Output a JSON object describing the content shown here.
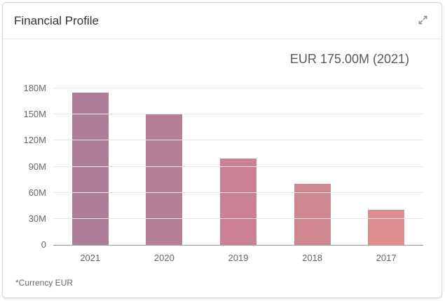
{
  "card": {
    "title": "Financial Profile"
  },
  "chart_data": {
    "type": "bar",
    "title": "EUR 175.00M (2021)",
    "categories": [
      "2021",
      "2020",
      "2019",
      "2018",
      "2017"
    ],
    "values": [
      175,
      150,
      99,
      70,
      40
    ],
    "unit": "M EUR",
    "ylim": [
      0,
      180
    ],
    "yticks": [
      0,
      30,
      60,
      90,
      120,
      150,
      180
    ],
    "ytick_labels": [
      "0",
      "30M",
      "60M",
      "90M",
      "120M",
      "150M",
      "180M"
    ],
    "bar_colors": [
      "#ae7e99",
      "#b57f97",
      "#ca8095",
      "#ce8691",
      "#e08d90"
    ],
    "grid": true,
    "legend": "none",
    "footnote": "*Currency EUR"
  }
}
